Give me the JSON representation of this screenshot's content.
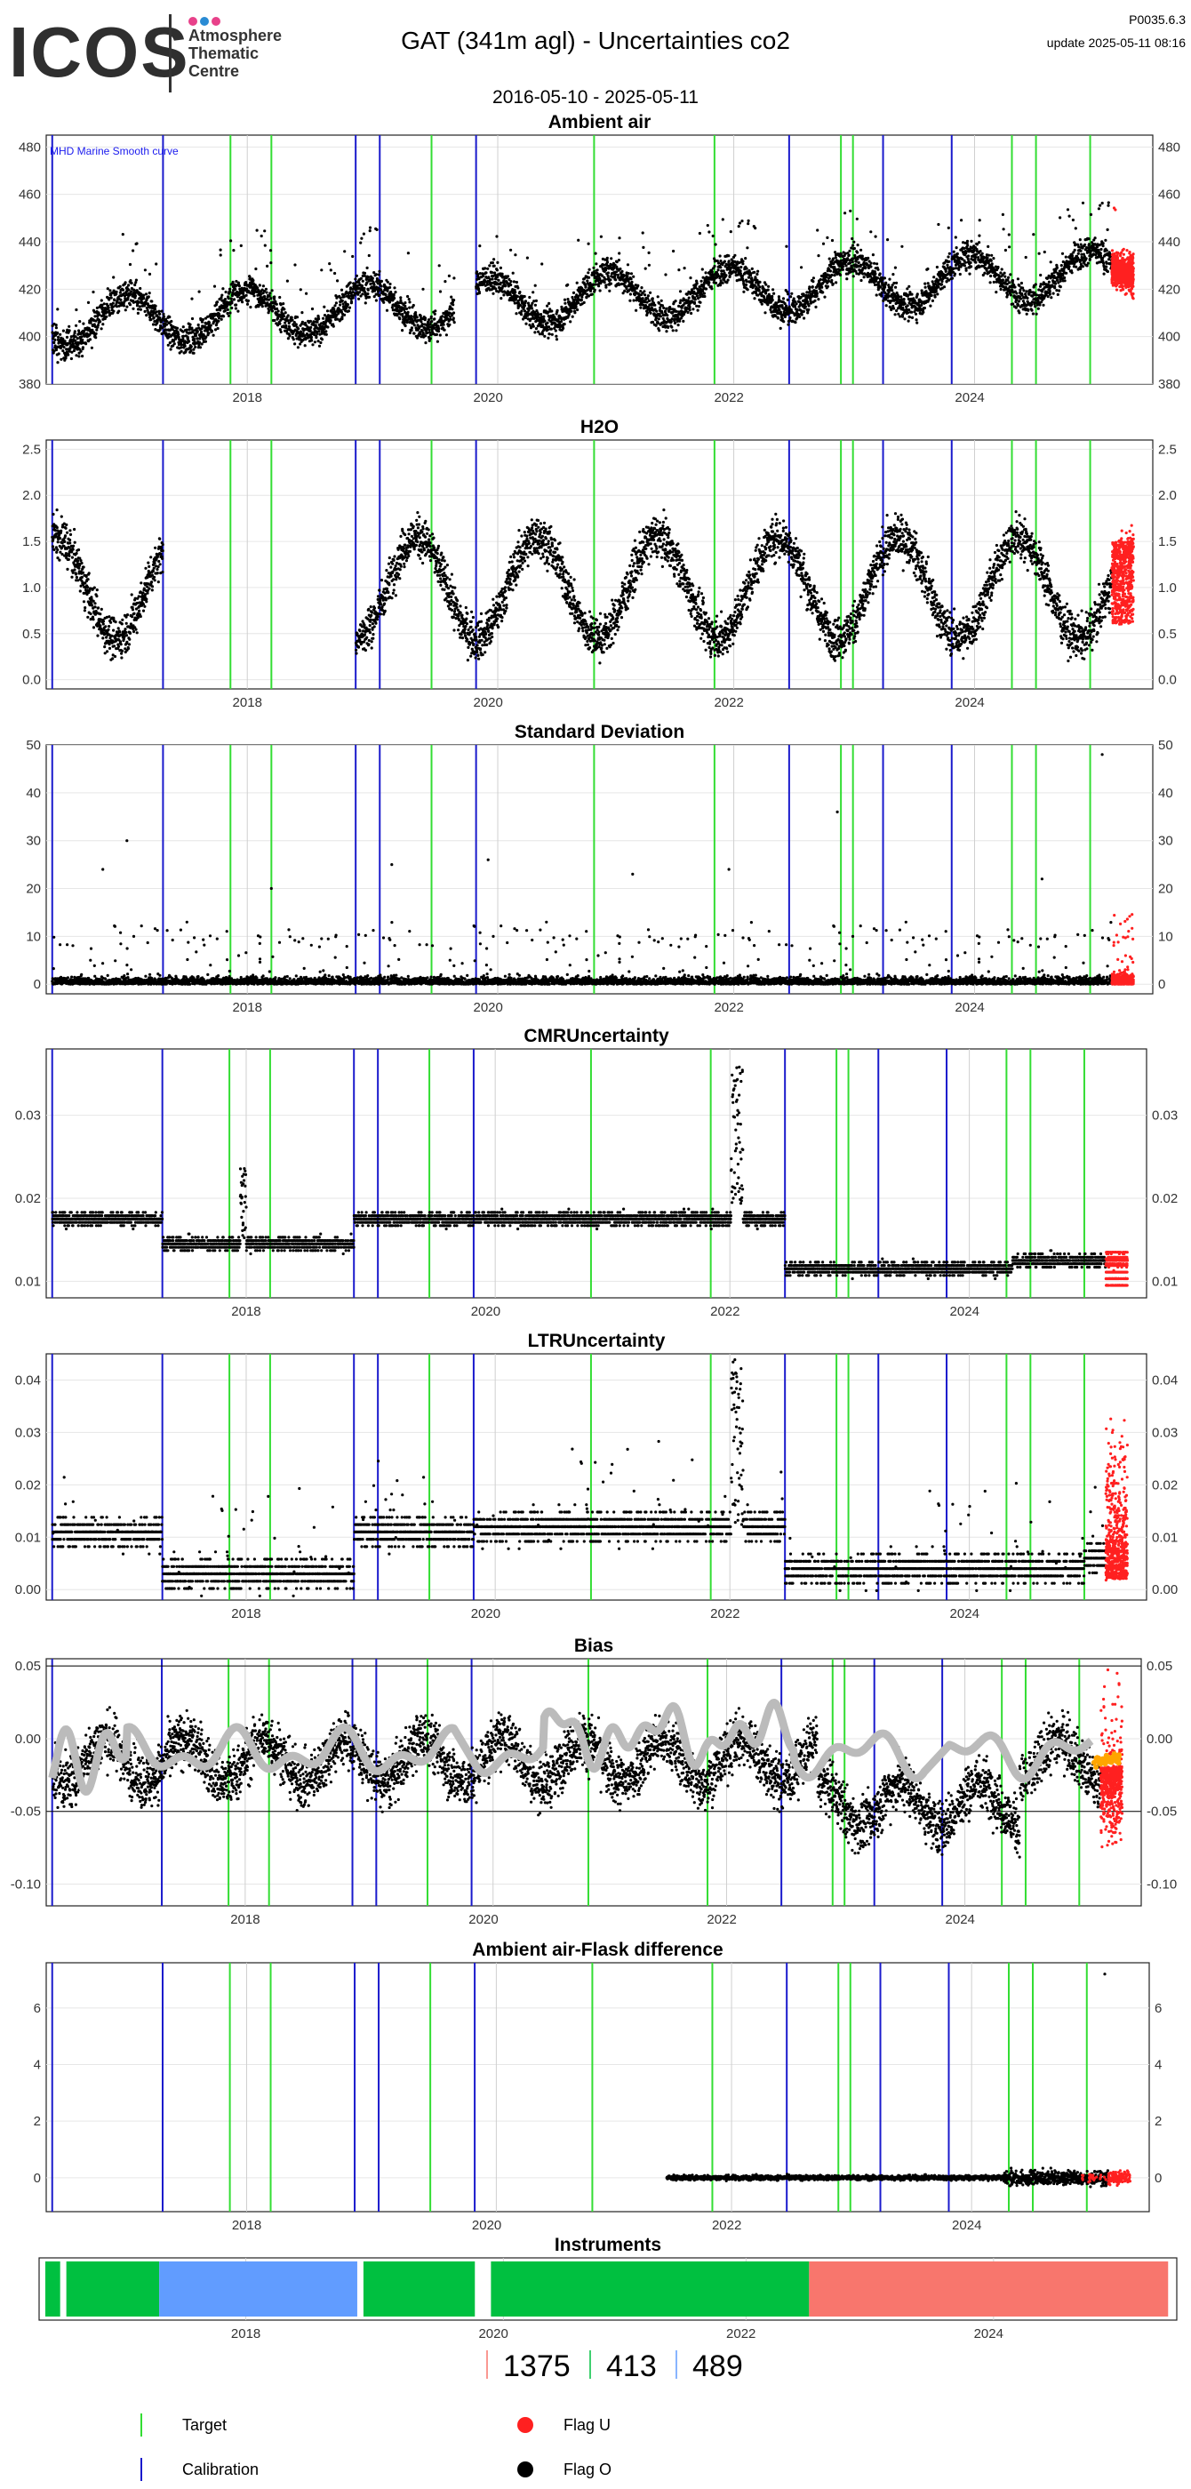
{
  "header": {
    "logo_text": "ICOS",
    "logo_subtitle": [
      "Atmosphere",
      "Thematic",
      "Centre"
    ],
    "logo_dot_colors": [
      "#e8418a",
      "#2a8bd4",
      "#e8418a"
    ],
    "title": "GAT  (341m agl) - Uncertainties co2",
    "version": "P0035.6.3",
    "update": "update  2025-05-11 08:16",
    "date_range": "2016-05-10 - 2025-05-11"
  },
  "colors": {
    "target": "#33dd33",
    "calibration": "#1a1acc",
    "flag_u": "#ff2020",
    "flag_o": "#000000",
    "bias_smooth": "#bbbbbb",
    "bias_orange": "#ffa500",
    "grid": "#e6e6e6"
  },
  "chart_data": [
    {
      "id": "ambient",
      "type": "scatter",
      "title": "Ambient air",
      "annotation": "MHD Marine Smooth curve",
      "ylim": [
        380,
        485
      ],
      "yticks": [
        380,
        400,
        420,
        440,
        460,
        480
      ],
      "ytick_labels": [
        "380",
        "400",
        "420",
        "440",
        "460",
        "480"
      ],
      "series_shape": {
        "base": 420,
        "trend": 1.5,
        "season": 9,
        "noise": 7
      }
    },
    {
      "id": "h2o",
      "type": "scatter",
      "title": "H2O",
      "ylim": [
        -0.1,
        2.6
      ],
      "yticks": [
        0,
        0.5,
        1,
        1.5,
        2,
        2.5
      ],
      "ytick_labels": [
        "0.0",
        "0.5",
        "1.0",
        "1.5",
        "2.0",
        "2.5"
      ],
      "gap": [
        2017.3,
        2018.9
      ],
      "series_shape": {
        "base": 1.0,
        "trend": 0,
        "season": 0.6,
        "noise": 0.25
      }
    },
    {
      "id": "stddev",
      "type": "scatter",
      "title": "Standard Deviation",
      "ylim": [
        -2,
        50
      ],
      "yticks": [
        0,
        10,
        20,
        30,
        40,
        50
      ],
      "ytick_labels": [
        "0",
        "10",
        "20",
        "30",
        "40",
        "50"
      ],
      "outliers": [
        [
          2016.8,
          24
        ],
        [
          2017.0,
          30
        ],
        [
          2018.2,
          20
        ],
        [
          2019.2,
          25
        ],
        [
          2020.0,
          26
        ],
        [
          2021.2,
          23
        ],
        [
          2022.0,
          24
        ],
        [
          2022.9,
          36
        ],
        [
          2024.6,
          22
        ],
        [
          2025.1,
          48
        ]
      ]
    },
    {
      "id": "cmr",
      "type": "scatter",
      "title": "CMRUncertainty",
      "ylim": [
        0.008,
        0.038
      ],
      "yticks": [
        0.01,
        0.02,
        0.03
      ],
      "ytick_labels": [
        "0.01",
        "0.02",
        "0.03"
      ],
      "levels": [
        [
          2016.38,
          2017.3,
          0.0175
        ],
        [
          2017.3,
          2018.9,
          0.0145
        ],
        [
          2018.9,
          2019.9,
          0.0175
        ],
        [
          2019.9,
          2022.5,
          0.0175
        ],
        [
          2022.5,
          2024.4,
          0.0115
        ],
        [
          2024.4,
          2025.36,
          0.0125
        ]
      ]
    },
    {
      "id": "ltr",
      "type": "scatter",
      "title": "LTRUncertainty",
      "ylim": [
        -0.002,
        0.045
      ],
      "yticks": [
        0,
        0.01,
        0.02,
        0.03,
        0.04
      ],
      "ytick_labels": [
        "0.00",
        "0.01",
        "0.02",
        "0.03",
        "0.04"
      ],
      "levels": [
        [
          2016.38,
          2017.3,
          0.011
        ],
        [
          2017.3,
          2018.9,
          0.003
        ],
        [
          2018.9,
          2019.9,
          0.011
        ],
        [
          2019.9,
          2022.5,
          0.012
        ],
        [
          2022.5,
          2025.0,
          0.004
        ],
        [
          2025.0,
          2025.36,
          0.006
        ]
      ]
    },
    {
      "id": "bias",
      "type": "scatter",
      "title": "Bias",
      "ylim": [
        -0.115,
        0.055
      ],
      "yticks": [
        -0.1,
        -0.05,
        0,
        0.05
      ],
      "ytick_labels": [
        "-0.10",
        "-0.05",
        "0.00",
        "0.05"
      ],
      "hlines": [
        0.05,
        -0.05
      ]
    },
    {
      "id": "flask",
      "type": "scatter",
      "title": "Ambient air-Flask difference",
      "ylim": [
        -1.2,
        7.6
      ],
      "yticks": [
        0,
        2,
        4,
        6
      ],
      "ytick_labels": [
        "0",
        "2",
        "4",
        "6"
      ],
      "data_range": [
        2021.5,
        2025.4
      ],
      "outliers": [
        [
          2025.15,
          7.2
        ]
      ]
    },
    {
      "id": "instruments",
      "type": "timeline",
      "title": "Instruments",
      "segments": [
        {
          "from": 2016.38,
          "to": 2016.5,
          "color": "#00c040"
        },
        {
          "from": 2016.55,
          "to": 2017.3,
          "color": "#00c040"
        },
        {
          "from": 2017.3,
          "to": 2018.9,
          "color": "#619cff"
        },
        {
          "from": 2018.95,
          "to": 2019.85,
          "color": "#00c040"
        },
        {
          "from": 2019.98,
          "to": 2022.55,
          "color": "#00c040"
        },
        {
          "from": 2022.55,
          "to": 2025.45,
          "color": "#f8766d"
        }
      ],
      "counts": [
        {
          "label": "1375",
          "color": "#f8766d"
        },
        {
          "label": "413",
          "color": "#00c040"
        },
        {
          "label": "489",
          "color": "#619cff"
        }
      ]
    }
  ],
  "x_axis": {
    "xlim": [
      2016.33,
      2025.52
    ],
    "ticks": [
      2018,
      2020,
      2022,
      2024
    ],
    "tick_labels": [
      "2018",
      "2020",
      "2022",
      "2024"
    ],
    "gray_lines": [
      2018.0,
      2020.08,
      2022.04,
      2024.04
    ]
  },
  "events": {
    "calibration": [
      2016.38,
      2017.3,
      2018.9,
      2019.1,
      2019.9,
      2022.5,
      2023.28,
      2023.85
    ],
    "target": [
      2017.86,
      2018.2,
      2019.53,
      2020.88,
      2021.88,
      2022.93,
      2023.03,
      2024.35,
      2024.55,
      2025.0
    ]
  },
  "legend": {
    "target": "Target",
    "calibration": "Calibration",
    "flag_u": "Flag U",
    "flag_o": "Flag O"
  }
}
